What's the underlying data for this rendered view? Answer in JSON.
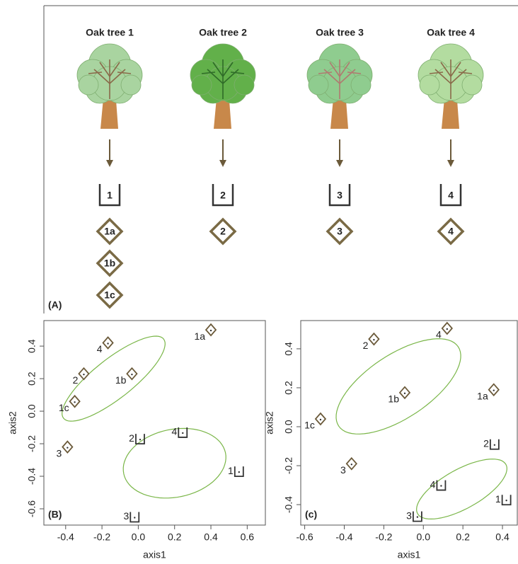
{
  "diagram": {
    "label": "(A)",
    "trees": [
      {
        "title": "Oak tree 1",
        "bucket": "1",
        "samples": [
          "1a",
          "1b",
          "1c"
        ],
        "crown_color": "#a9d4a0",
        "branch_color": "#8a6a4a"
      },
      {
        "title": "Oak tree 2",
        "bucket": "2",
        "samples": [
          "2"
        ],
        "crown_color": "#62b04a",
        "branch_color": "#2f6b28"
      },
      {
        "title": "Oak tree 3",
        "bucket": "3",
        "samples": [
          "3"
        ],
        "crown_color": "#8fcc8f",
        "branch_color": "#b07a70"
      },
      {
        "title": "Oak tree 4",
        "bucket": "4",
        "samples": [
          "4"
        ],
        "crown_color": "#b3dca0",
        "branch_color": "#8a6a4a"
      }
    ]
  },
  "chart_data": [
    {
      "type": "scatter",
      "panel_label": "(B)",
      "xlabel": "axis1",
      "ylabel": "axis2",
      "xlim": [
        -0.52,
        0.7
      ],
      "ylim": [
        -0.7,
        0.557
      ],
      "xticks": [
        -0.4,
        -0.2,
        {
          "value": 0,
          "label": "0.0"
        },
        0.2,
        0.4,
        0.6
      ],
      "yticks": [
        -0.6,
        -0.4,
        -0.2,
        {
          "value": 0,
          "label": "0.0"
        },
        0.2,
        0.4
      ],
      "ellipse_color": "#7ab648",
      "points": [
        {
          "label": "1a",
          "marker": "diamond",
          "x": 0.4,
          "y": 0.5
        },
        {
          "label": "4",
          "marker": "diamond",
          "x": -0.167,
          "y": 0.42
        },
        {
          "label": "2",
          "marker": "diamond",
          "x": -0.3,
          "y": 0.23
        },
        {
          "label": "1b",
          "marker": "diamond",
          "x": -0.035,
          "y": 0.23
        },
        {
          "label": "1c",
          "marker": "diamond",
          "x": -0.35,
          "y": 0.06
        },
        {
          "label": "3",
          "marker": "diamond",
          "x": -0.39,
          "y": -0.22
        },
        {
          "label": "2",
          "marker": "bucket",
          "x": 0.01,
          "y": -0.17
        },
        {
          "label": "4",
          "marker": "bucket",
          "x": 0.245,
          "y": -0.13
        },
        {
          "label": "1",
          "marker": "bucket",
          "x": 0.555,
          "y": -0.37
        },
        {
          "label": "3",
          "marker": "bucket",
          "x": -0.02,
          "y": -0.65
        }
      ],
      "ellipses": [
        {
          "center": [
            -0.136,
            0.2
          ],
          "axis1": [
            0.276,
            0.243
          ],
          "axis2": [
            -0.066,
            0.096
          ]
        },
        {
          "center": [
            0.2,
            -0.32
          ],
          "axis1": [
            0.28,
            0.065
          ],
          "axis2": [
            0.039,
            -0.204
          ]
        }
      ]
    },
    {
      "type": "scatter",
      "panel_label": "(c)",
      "xlabel": "axis1",
      "ylabel": "axis2",
      "xlim": [
        -0.62,
        0.475
      ],
      "ylim": [
        -0.505,
        0.545
      ],
      "xticks": [
        -0.6,
        -0.4,
        -0.2,
        {
          "value": 0,
          "label": "0.0"
        },
        0.2,
        0.4
      ],
      "yticks": [
        -0.4,
        -0.2,
        {
          "value": 0,
          "label": "0.0"
        },
        0.2,
        0.4
      ],
      "ellipse_color": "#7ab648",
      "points": [
        {
          "label": "4",
          "marker": "diamond",
          "x": 0.12,
          "y": 0.505
        },
        {
          "label": "2",
          "marker": "diamond",
          "x": -0.25,
          "y": 0.45
        },
        {
          "label": "1b",
          "marker": "diamond",
          "x": -0.094,
          "y": 0.175
        },
        {
          "label": "1a",
          "marker": "diamond",
          "x": 0.356,
          "y": 0.19
        },
        {
          "label": "1c",
          "marker": "diamond",
          "x": -0.52,
          "y": 0.04
        },
        {
          "label": "3",
          "marker": "diamond",
          "x": -0.363,
          "y": -0.19
        },
        {
          "label": "2",
          "marker": "bucket",
          "x": 0.36,
          "y": -0.09
        },
        {
          "label": "4",
          "marker": "bucket",
          "x": 0.09,
          "y": -0.3
        },
        {
          "label": "1",
          "marker": "bucket",
          "x": 0.42,
          "y": -0.375
        },
        {
          "label": "3",
          "marker": "bucket",
          "x": -0.03,
          "y": -0.46
        }
      ],
      "ellipses": [
        {
          "center": [
            -0.126,
            0.207
          ],
          "axis1": [
            0.302,
            0.204
          ],
          "axis2": [
            -0.09,
            0.135
          ]
        },
        {
          "center": [
            0.194,
            -0.32
          ],
          "axis1": [
            0.223,
            0.127
          ],
          "axis2": [
            0.05,
            -0.087
          ]
        }
      ]
    }
  ]
}
